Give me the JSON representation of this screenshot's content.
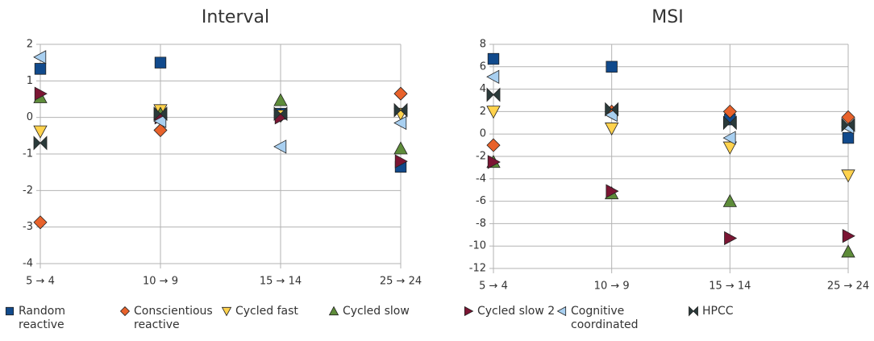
{
  "chart_data": [
    {
      "type": "scatter",
      "title": "Interval",
      "categories": [
        "5 → 4",
        "10 → 9",
        "15 → 14",
        "25 → 24"
      ],
      "ylim": [
        -4,
        2
      ],
      "yticks": [
        -4,
        -3,
        -2,
        -1,
        0,
        1,
        2
      ],
      "grid": true,
      "series": [
        {
          "name": "Random reactive",
          "color": "#114a8c",
          "marker": "square",
          "values": [
            1.33,
            1.5,
            0.1,
            -1.35
          ]
        },
        {
          "name": "Conscientious reactive",
          "color": "#e8622b",
          "marker": "diamond",
          "values": [
            -2.87,
            -0.35,
            0.05,
            0.65
          ]
        },
        {
          "name": "Cycled fast",
          "color": "#ffd24d",
          "marker": "triangle-down",
          "values": [
            -0.38,
            0.2,
            0.05,
            0.1
          ]
        },
        {
          "name": "Cycled slow",
          "color": "#5e8c3a",
          "marker": "triangle-up",
          "values": [
            0.55,
            0.1,
            0.47,
            -0.85
          ]
        },
        {
          "name": "Cycled slow 2",
          "color": "#7b1533",
          "marker": "triangle-right",
          "values": [
            0.65,
            0.0,
            0.0,
            -1.2
          ]
        },
        {
          "name": "Cognitive coordinated",
          "color": "#a8cff0",
          "marker": "triangle-left",
          "values": [
            1.65,
            -0.1,
            -0.8,
            -0.15
          ]
        },
        {
          "name": "HPCC",
          "color": "#2a3a3a",
          "marker": "bowtie",
          "values": [
            -0.7,
            0.1,
            0.1,
            0.2
          ]
        }
      ]
    },
    {
      "type": "scatter",
      "title": "MSI",
      "categories": [
        "5 → 4",
        "10 → 9",
        "15 → 14",
        "25 → 24"
      ],
      "ylim": [
        -12,
        8
      ],
      "yticks": [
        -12,
        -10,
        -8,
        -6,
        -4,
        -2,
        0,
        2,
        4,
        6,
        8
      ],
      "grid": true,
      "series": [
        {
          "color": "#114a8c",
          "marker": "square",
          "values": [
            6.7,
            6.0,
            1.3,
            -0.35
          ]
        },
        {
          "color": "#e8622b",
          "marker": "diamond",
          "values": [
            -1.0,
            2.0,
            2.0,
            1.5
          ]
        },
        {
          "color": "#ffd24d",
          "marker": "triangle-down",
          "values": [
            2.0,
            0.5,
            -1.2,
            -3.7
          ]
        },
        {
          "color": "#5e8c3a",
          "marker": "triangle-up",
          "values": [
            -2.5,
            -5.3,
            -6.0,
            -10.5
          ]
        },
        {
          "color": "#7b1533",
          "marker": "triangle-right",
          "values": [
            -2.5,
            -5.1,
            -9.3,
            -9.1
          ]
        },
        {
          "color": "#a8cff0",
          "marker": "triangle-left",
          "values": [
            5.1,
            1.7,
            -0.35,
            0.6
          ]
        },
        {
          "color": "#2a3a3a",
          "marker": "bowtie",
          "values": [
            3.5,
            2.2,
            1.0,
            0.8
          ]
        }
      ]
    }
  ]
}
